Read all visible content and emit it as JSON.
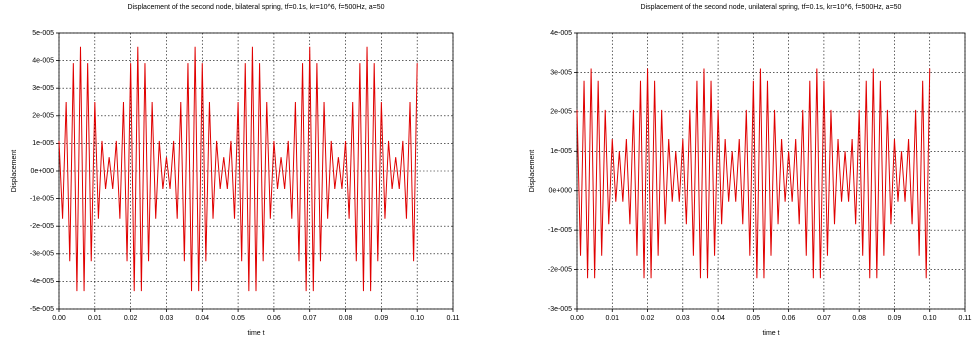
{
  "chart_data": [
    {
      "type": "line",
      "title": "Displacement of the second node, bilateral spring, tf=0.1s, kr=10^6, f=500Hz, a=50",
      "x_label": "time t",
      "y_label": "Displacement",
      "color": "#e00000",
      "grid": true,
      "xlim": [
        0,
        0.11
      ],
      "ylim": [
        -5e-05,
        5e-05
      ],
      "xticks": [
        {
          "value": 0,
          "label": "0.00"
        },
        {
          "value": 0.01,
          "label": "0.01"
        },
        {
          "value": 0.02,
          "label": "0.02"
        },
        {
          "value": 0.03,
          "label": "0.03"
        },
        {
          "value": 0.04,
          "label": "0.04"
        },
        {
          "value": 0.05,
          "label": "0.05"
        },
        {
          "value": 0.06,
          "label": "0.06"
        },
        {
          "value": 0.07,
          "label": "0.07"
        },
        {
          "value": 0.08,
          "label": "0.08"
        },
        {
          "value": 0.09,
          "label": "0.09"
        },
        {
          "value": 0.1,
          "label": "0.10"
        },
        {
          "value": 0.11,
          "label": "0.11"
        }
      ],
      "yticks": [
        {
          "value": -5e-05,
          "label": "-5e-005"
        },
        {
          "value": -4e-05,
          "label": "-4e-005"
        },
        {
          "value": -3e-05,
          "label": "-3e-005"
        },
        {
          "value": -2e-05,
          "label": "-2e-005"
        },
        {
          "value": -1e-05,
          "label": "-1e-005"
        },
        {
          "value": 0,
          "label": "0e+000"
        },
        {
          "value": 1e-05,
          "label": "1e-005"
        },
        {
          "value": 2e-05,
          "label": "2e-005"
        },
        {
          "value": 3e-05,
          "label": "3e-005"
        },
        {
          "value": 4e-05,
          "label": "4e-005"
        },
        {
          "value": 5e-05,
          "label": "5e-005"
        }
      ],
      "x": [
        0,
        0.001,
        0.002,
        0.003,
        0.004,
        0.005,
        0.006,
        0.007,
        0.008,
        0.009,
        0.01,
        0.011,
        0.012,
        0.013,
        0.014,
        0.015,
        0.016,
        0.017,
        0.018,
        0.019,
        0.02,
        0.021,
        0.022,
        0.023,
        0.024,
        0.025,
        0.026,
        0.027,
        0.028,
        0.029,
        0.03,
        0.031,
        0.032,
        0.033,
        0.034,
        0.035,
        0.036,
        0.037,
        0.038,
        0.039,
        0.04,
        0.041,
        0.042,
        0.043,
        0.044,
        0.045,
        0.046,
        0.047,
        0.048,
        0.049,
        0.05,
        0.051,
        0.052,
        0.053,
        0.054,
        0.055,
        0.056,
        0.057,
        0.058,
        0.059,
        0.06,
        0.061,
        0.062,
        0.063,
        0.064,
        0.065,
        0.066,
        0.067,
        0.068,
        0.069,
        0.07,
        0.071,
        0.072,
        0.073,
        0.074,
        0.075,
        0.076,
        0.077,
        0.078,
        0.079,
        0.08,
        0.081,
        0.082,
        0.083,
        0.084,
        0.085,
        0.086,
        0.087,
        0.088,
        0.089,
        0.09,
        0.091,
        0.092,
        0.093,
        0.094,
        0.095,
        0.096,
        0.097,
        0.098,
        0.099,
        0.1
      ],
      "values": [
        1.09e-05,
        -1.73e-05,
        2.5e-05,
        -3.27e-05,
        3.91e-05,
        -4.35e-05,
        4.5e-05,
        -4.35e-05,
        3.91e-05,
        -3.27e-05,
        2.5e-05,
        -1.73e-05,
        1.09e-05,
        -6.5e-06,
        5e-06,
        -6.5e-06,
        1.09e-05,
        -1.73e-05,
        2.5e-05,
        -3.27e-05,
        3.91e-05,
        -4.35e-05,
        4.5e-05,
        -4.35e-05,
        3.91e-05,
        -3.27e-05,
        2.5e-05,
        -1.73e-05,
        1.09e-05,
        -6.5e-06,
        5e-06,
        -6.5e-06,
        1.09e-05,
        -1.73e-05,
        2.5e-05,
        -3.27e-05,
        3.91e-05,
        -4.35e-05,
        4.5e-05,
        -4.35e-05,
        3.91e-05,
        -3.27e-05,
        2.5e-05,
        -1.73e-05,
        1.09e-05,
        -6.5e-06,
        5e-06,
        -6.5e-06,
        1.09e-05,
        -1.73e-05,
        2.5e-05,
        -3.27e-05,
        3.91e-05,
        -4.35e-05,
        4.5e-05,
        -4.35e-05,
        3.91e-05,
        -3.27e-05,
        2.5e-05,
        -1.73e-05,
        1.09e-05,
        -6.5e-06,
        5e-06,
        -6.5e-06,
        1.09e-05,
        -1.73e-05,
        2.5e-05,
        -3.27e-05,
        3.91e-05,
        -4.35e-05,
        4.5e-05,
        -4.35e-05,
        3.91e-05,
        -3.27e-05,
        2.5e-05,
        -1.73e-05,
        1.09e-05,
        -6.5e-06,
        5e-06,
        -6.5e-06,
        1.09e-05,
        -1.73e-05,
        2.5e-05,
        -3.27e-05,
        3.91e-05,
        -4.35e-05,
        4.5e-05,
        -4.35e-05,
        3.91e-05,
        -3.27e-05,
        2.5e-05,
        -1.73e-05,
        1.09e-05,
        -6.5e-06,
        5e-06,
        -6.5e-06,
        1.09e-05,
        -1.73e-05,
        2.5e-05,
        -3.27e-05,
        3.91e-05
      ]
    },
    {
      "type": "line",
      "title": "Displacement of the second node, unilateral spring, tf=0.1s, kr=10^6, f=500Hz, a=50",
      "x_label": "time t",
      "y_label": "Displacement",
      "color": "#e00000",
      "grid": true,
      "xlim": [
        0,
        0.11
      ],
      "ylim": [
        -3e-05,
        4e-05
      ],
      "xticks": [
        {
          "value": 0,
          "label": "0.00"
        },
        {
          "value": 0.01,
          "label": "0.01"
        },
        {
          "value": 0.02,
          "label": "0.02"
        },
        {
          "value": 0.03,
          "label": "0.03"
        },
        {
          "value": 0.04,
          "label": "0.04"
        },
        {
          "value": 0.05,
          "label": "0.05"
        },
        {
          "value": 0.06,
          "label": "0.06"
        },
        {
          "value": 0.07,
          "label": "0.07"
        },
        {
          "value": 0.08,
          "label": "0.08"
        },
        {
          "value": 0.09,
          "label": "0.09"
        },
        {
          "value": 0.1,
          "label": "0.10"
        },
        {
          "value": 0.11,
          "label": "0.11"
        }
      ],
      "yticks": [
        {
          "value": -3e-05,
          "label": "-3e-005"
        },
        {
          "value": -2e-05,
          "label": "-2e-005"
        },
        {
          "value": -1e-05,
          "label": "-1e-005"
        },
        {
          "value": 0,
          "label": "0e+000"
        },
        {
          "value": 1e-05,
          "label": "1e-005"
        },
        {
          "value": 2e-05,
          "label": "2e-005"
        },
        {
          "value": 3e-05,
          "label": "3e-005"
        },
        {
          "value": 4e-05,
          "label": "4e-005"
        }
      ],
      "x": [
        0,
        0.001,
        0.002,
        0.003,
        0.004,
        0.005,
        0.006,
        0.007,
        0.008,
        0.009,
        0.01,
        0.011,
        0.012,
        0.013,
        0.014,
        0.015,
        0.016,
        0.017,
        0.018,
        0.019,
        0.02,
        0.021,
        0.022,
        0.023,
        0.024,
        0.025,
        0.026,
        0.027,
        0.028,
        0.029,
        0.03,
        0.031,
        0.032,
        0.033,
        0.034,
        0.035,
        0.036,
        0.037,
        0.038,
        0.039,
        0.04,
        0.041,
        0.042,
        0.043,
        0.044,
        0.045,
        0.046,
        0.047,
        0.048,
        0.049,
        0.05,
        0.051,
        0.052,
        0.053,
        0.054,
        0.055,
        0.056,
        0.057,
        0.058,
        0.059,
        0.06,
        0.061,
        0.062,
        0.063,
        0.064,
        0.065,
        0.066,
        0.067,
        0.068,
        0.069,
        0.07,
        0.071,
        0.072,
        0.073,
        0.074,
        0.075,
        0.076,
        0.077,
        0.078,
        0.079,
        0.08,
        0.081,
        0.082,
        0.083,
        0.084,
        0.085,
        0.086,
        0.087,
        0.088,
        0.089,
        0.09,
        0.091,
        0.092,
        0.093,
        0.094,
        0.095,
        0.096,
        0.097,
        0.098,
        0.099,
        0.1
      ],
      "values": [
        2.05e-05,
        -1.65e-05,
        2.79e-05,
        -2.22e-05,
        3.1e-05,
        -2.22e-05,
        2.79e-05,
        -1.65e-05,
        2.05e-05,
        -8.5e-06,
        1.31e-05,
        -2.8e-06,
        1e-05,
        -2.8e-06,
        1.31e-05,
        -8.5e-06,
        2.05e-05,
        -1.65e-05,
        2.79e-05,
        -2.22e-05,
        3.1e-05,
        -2.22e-05,
        2.79e-05,
        -1.65e-05,
        2.05e-05,
        -8.5e-06,
        1.31e-05,
        -2.8e-06,
        1e-05,
        -2.8e-06,
        1.31e-05,
        -8.5e-06,
        2.05e-05,
        -1.65e-05,
        2.79e-05,
        -2.22e-05,
        3.1e-05,
        -2.22e-05,
        2.79e-05,
        -1.65e-05,
        2.05e-05,
        -8.5e-06,
        1.31e-05,
        -2.8e-06,
        1e-05,
        -2.8e-06,
        1.31e-05,
        -8.5e-06,
        2.05e-05,
        -1.65e-05,
        2.79e-05,
        -2.22e-05,
        3.1e-05,
        -2.22e-05,
        2.79e-05,
        -1.65e-05,
        2.05e-05,
        -8.5e-06,
        1.31e-05,
        -2.8e-06,
        1e-05,
        -2.8e-06,
        1.31e-05,
        -8.5e-06,
        2.05e-05,
        -1.65e-05,
        2.79e-05,
        -2.22e-05,
        3.1e-05,
        -2.22e-05,
        2.79e-05,
        -1.65e-05,
        2.05e-05,
        -8.5e-06,
        1.31e-05,
        -2.8e-06,
        1e-05,
        -2.8e-06,
        1.31e-05,
        -8.5e-06,
        2.05e-05,
        -1.65e-05,
        2.79e-05,
        -2.22e-05,
        3.1e-05,
        -2.22e-05,
        2.79e-05,
        -1.65e-05,
        2.05e-05,
        -8.5e-06,
        1.31e-05,
        -2.8e-06,
        1e-05,
        -2.8e-06,
        1.31e-05,
        -8.5e-06,
        2.05e-05,
        -1.65e-05,
        2.79e-05,
        -2.22e-05,
        3.1e-05
      ]
    }
  ]
}
